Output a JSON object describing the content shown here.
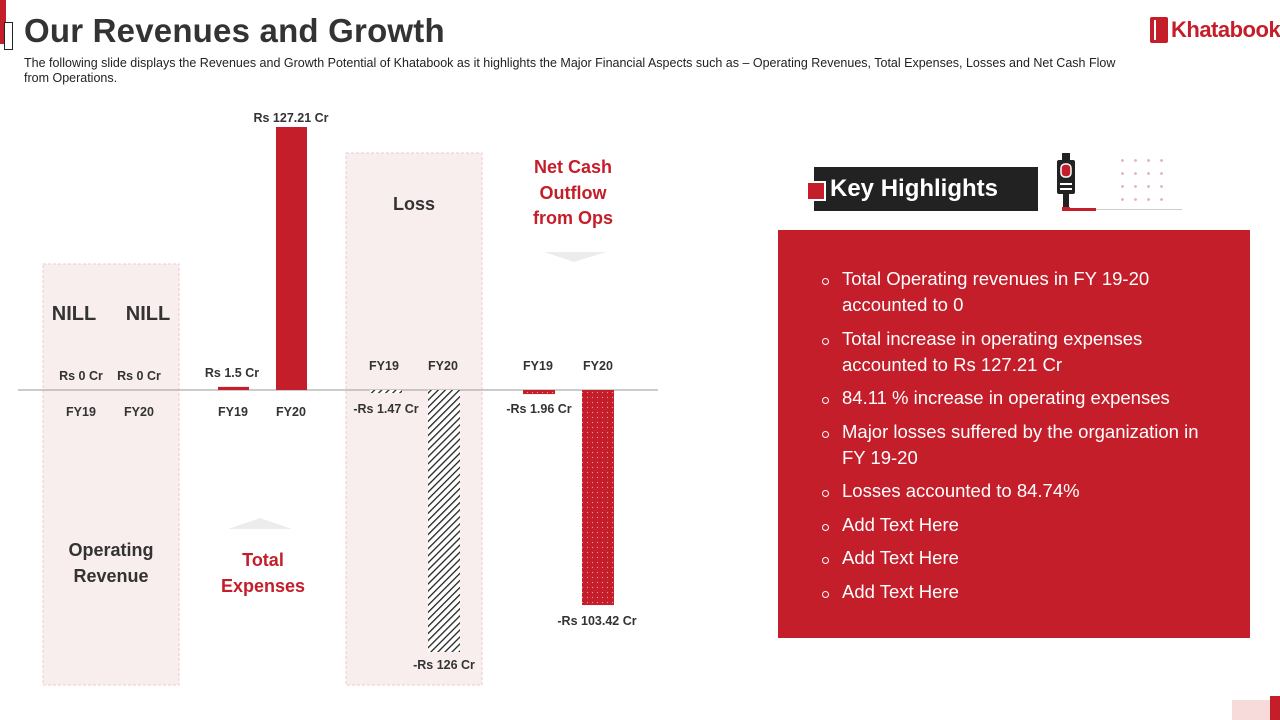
{
  "header": {
    "title": "Our Revenues and Growth",
    "subtitle": "The following  slide displays the Revenues  and Growth Potential of Khatabook as it highlights the Major Financial Aspects such as – Operating Revenues,  Total Expenses, Losses and Net Cash Flow from Operations.",
    "logo_text": "Khatabook"
  },
  "colors": {
    "accent": "#c41e2a",
    "dark": "#222222",
    "panel_bg": "#f9eeee",
    "title": "#333333"
  },
  "chart_data": {
    "type": "bar",
    "title": "Our Revenues and Growth",
    "categories": [
      "FY19",
      "FY20"
    ],
    "groups": [
      {
        "name": "Operating Revenue",
        "label_lines": [
          "Operating",
          "Revenue"
        ],
        "values": [
          0,
          0
        ],
        "labels": [
          "Rs 0 Cr",
          "Rs 0 Cr"
        ],
        "notes": [
          "NILL",
          "NILL"
        ]
      },
      {
        "name": "Total Expenses",
        "label_lines": [
          "Total",
          "Expenses"
        ],
        "values": [
          1.5,
          127.21
        ],
        "labels": [
          "Rs 1.5 Cr",
          "Rs 127.21  Cr"
        ]
      },
      {
        "name": "Loss",
        "label_lines": [
          "Loss"
        ],
        "values": [
          -1.47,
          -126
        ],
        "labels": [
          "-Rs 1.47 Cr",
          "-Rs 126 Cr"
        ]
      },
      {
        "name": "Net Cash Outflow from Ops",
        "label_lines": [
          "Net Cash",
          "Outflow",
          "from Ops"
        ],
        "values": [
          -1.96,
          -103.42
        ],
        "labels": [
          "-Rs 1.96 Cr",
          "-Rs 103.42  Cr"
        ]
      }
    ],
    "unit": "Rs Cr"
  },
  "highlights": {
    "heading": "Key Highlights",
    "items": [
      "Total Operating revenues  in FY 19-20 accounted to 0",
      "Total increase in operating expenses accounted to Rs 127.21 Cr",
      "84.11 % increase in operating expenses",
      "Major losses suffered by the organization in FY 19-20",
      "Losses accounted to 84.74%",
      "Add Text Here",
      "Add Text Here",
      "Add Text Here"
    ]
  }
}
